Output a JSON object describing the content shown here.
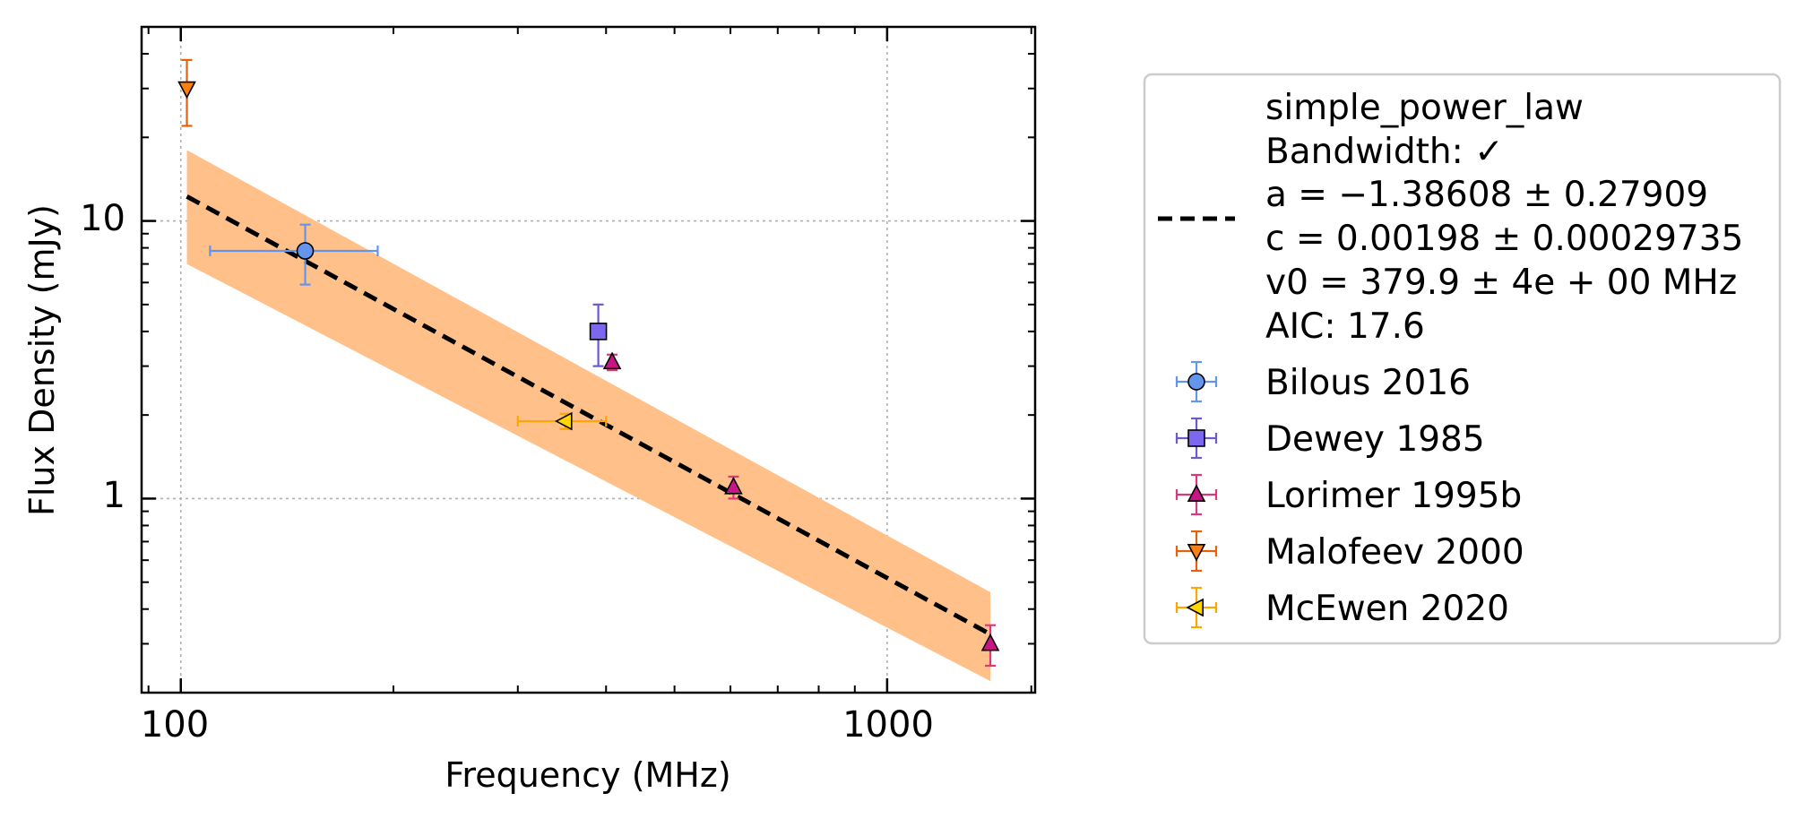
{
  "chart_data": {
    "type": "scatter",
    "title": "",
    "xlabel": "Frequency (MHz)",
    "ylabel": "Flux Density (mJy)",
    "x_scale": "log",
    "y_scale": "log",
    "xlim": [
      88,
      1620
    ],
    "ylim": [
      0.2,
      50
    ],
    "xticks": [
      {
        "value": 100,
        "label": "100"
      },
      {
        "value": 1000,
        "label": "1000"
      }
    ],
    "yticks": [
      {
        "value": 1,
        "label": "1"
      },
      {
        "value": 10,
        "label": "10"
      }
    ],
    "grid": true,
    "legend_position": "outside-right",
    "fit": {
      "name": "simple_power_law",
      "lines": [
        "simple_power_law",
        "Bandwidth: ✓",
        "a = −1.38608 ± 0.27909",
        "c = 0.00198 ± 0.00029735",
        "v0 = 379.9 ± 4e + 00 MHz",
        "AIC: 17.6"
      ],
      "a": -1.38608,
      "c": 0.00198,
      "v0": 379.9,
      "x_range": [
        102,
        1400
      ],
      "band_upper": [
        {
          "x": 102,
          "y": 18
        },
        {
          "x": 1400,
          "y": 0.46
        }
      ],
      "band_lower": [
        {
          "x": 102,
          "y": 7
        },
        {
          "x": 1400,
          "y": 0.22
        }
      ],
      "color": "#000000",
      "band_color": "#ffc08a"
    },
    "series": [
      {
        "name": "Bilous 2016",
        "marker": "circle",
        "color": "#6495ED",
        "edge": "#6495ED",
        "points": [
          {
            "x": 150,
            "y": 7.8,
            "xerr": [
              40,
              40
            ],
            "yerr": [
              1.9,
              1.9
            ]
          }
        ]
      },
      {
        "name": "Dewey 1985",
        "marker": "square",
        "color": "#7B68EE",
        "edge": "#6A5ACD",
        "points": [
          {
            "x": 390,
            "y": 4.0,
            "xerr": [
              0,
              0
            ],
            "yerr": [
              1.0,
              1.0
            ]
          }
        ]
      },
      {
        "name": "Lorimer 1995b",
        "marker": "triangle-up",
        "color": "#C71585",
        "edge": "#DB3A7A",
        "points": [
          {
            "x": 408,
            "y": 3.1,
            "xerr": [
              0,
              0
            ],
            "yerr": [
              0.2,
              0.2
            ]
          },
          {
            "x": 606,
            "y": 1.1,
            "xerr": [
              0,
              0
            ],
            "yerr": [
              0.1,
              0.1
            ]
          },
          {
            "x": 1400,
            "y": 0.3,
            "xerr": [
              0,
              0
            ],
            "yerr": [
              0.05,
              0.05
            ]
          }
        ]
      },
      {
        "name": "Malofeev 2000",
        "marker": "triangle-down",
        "color": "#FF7F0E",
        "edge": "#E8600A",
        "points": [
          {
            "x": 102,
            "y": 30,
            "xerr": [
              0,
              0
            ],
            "yerr": [
              8,
              8
            ]
          }
        ]
      },
      {
        "name": "McEwen 2020",
        "marker": "triangle-left",
        "color": "#FFD700",
        "edge": "#FFA500",
        "points": [
          {
            "x": 350,
            "y": 1.9,
            "xerr": [
              50,
              50
            ],
            "yerr": [
              0.12,
              0.12
            ]
          }
        ]
      }
    ]
  }
}
